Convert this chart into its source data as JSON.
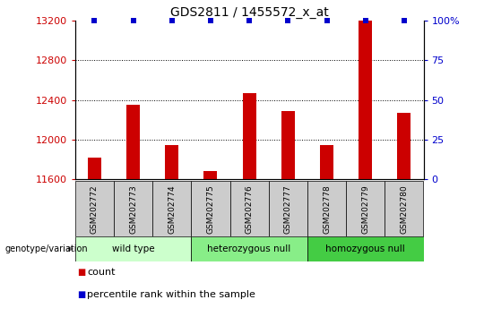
{
  "title": "GDS2811 / 1455572_x_at",
  "samples": [
    "GSM202772",
    "GSM202773",
    "GSM202774",
    "GSM202775",
    "GSM202776",
    "GSM202777",
    "GSM202778",
    "GSM202779",
    "GSM202780"
  ],
  "counts": [
    11820,
    12350,
    11940,
    11680,
    12470,
    12290,
    11940,
    13200,
    12270
  ],
  "percentile_ranks": [
    100,
    100,
    100,
    100,
    100,
    100,
    100,
    100,
    100
  ],
  "ylim_left": [
    11600,
    13200
  ],
  "ylim_right": [
    0,
    100
  ],
  "yticks_left": [
    11600,
    12000,
    12400,
    12800,
    13200
  ],
  "yticks_right": [
    0,
    25,
    50,
    75,
    100
  ],
  "groups": [
    {
      "label": "wild type",
      "start": 0,
      "end": 3,
      "color": "#ccffcc"
    },
    {
      "label": "heterozygous null",
      "start": 3,
      "end": 6,
      "color": "#88ee88"
    },
    {
      "label": "homozygous null",
      "start": 6,
      "end": 9,
      "color": "#44cc44"
    }
  ],
  "bar_color": "#cc0000",
  "dot_color": "#0000cc",
  "grid_color": "#000000",
  "tick_color_left": "#cc0000",
  "tick_color_right": "#0000cc",
  "legend_count_color": "#cc0000",
  "legend_dot_color": "#0000cc",
  "background_color": "#ffffff",
  "xticklabel_bg": "#cccccc"
}
